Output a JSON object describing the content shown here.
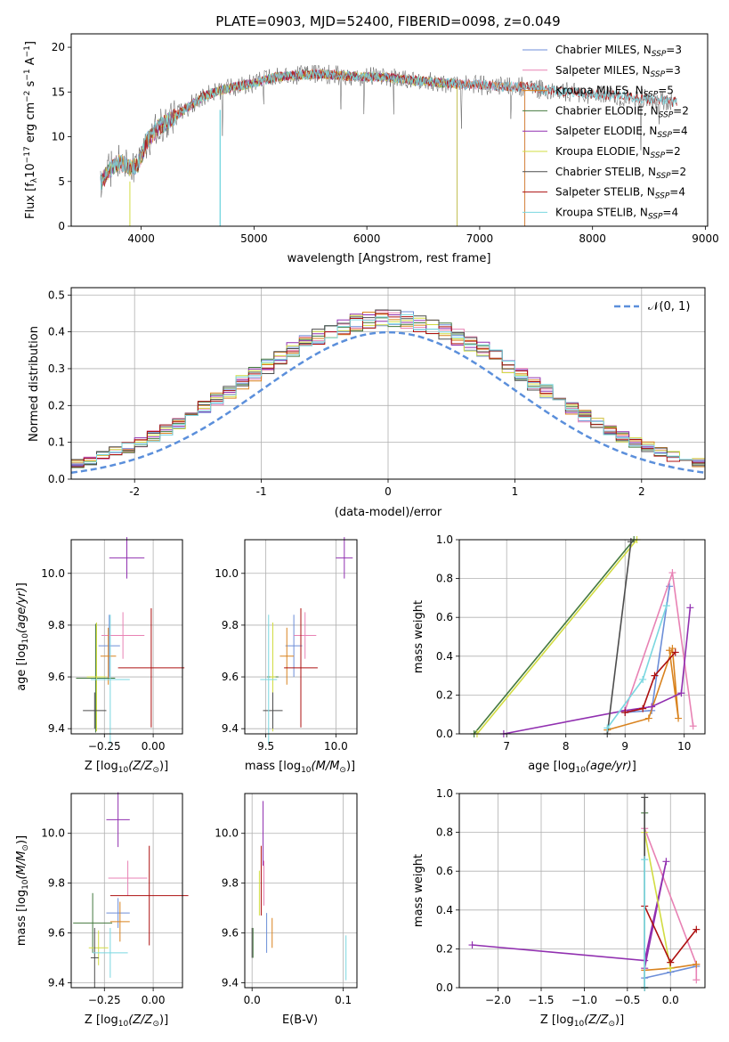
{
  "title": "PLATE=0903, MJD=52400, FIBERID=0098, z=0.049",
  "colors": [
    "#6c8ed8",
    "#e882b4",
    "#d9831f",
    "#44793f",
    "#9130b0",
    "#d2dc42",
    "#4d4d4d",
    "#ad1010",
    "#7ad7e0"
  ],
  "chart_data": [
    {
      "type": "line",
      "name": "spectrum",
      "xlabel": "wavelength [Angstrom, rest frame]",
      "ylabel": "Flux [f",
      "xlim": [
        3380,
        9020
      ],
      "ylim": [
        0,
        21.5
      ],
      "xticks": [
        4000,
        5000,
        6000,
        7000,
        8000,
        9000
      ],
      "yticks": [
        0,
        5,
        10,
        15,
        20
      ],
      "legend_position": "upper right",
      "series": [
        {
          "name": "Chabrier MILES",
          "nssp": "3",
          "x_end": 7400
        },
        {
          "name": "Salpeter MILES",
          "nssp": "3",
          "x_end": 7400
        },
        {
          "name": "Kroupa MILES",
          "nssp": "5",
          "x_end": 7400
        },
        {
          "name": "Chabrier ELODIE",
          "nssp": "2",
          "x_end": 6800
        },
        {
          "name": "Salpeter ELODIE",
          "nssp": "4",
          "x_end": 6800
        },
        {
          "name": "Kroupa ELODIE",
          "nssp": "2",
          "x_end": 6800
        },
        {
          "name": "Chabrier STELIB",
          "nssp": "2",
          "x_end": 8750
        },
        {
          "name": "Salpeter STELIB",
          "nssp": "4",
          "x_end": 8750
        },
        {
          "name": "Kroupa STELIB",
          "nssp": "4",
          "x_end": 8750
        }
      ],
      "continuum": {
        "x": [
          3640,
          3700,
          3800,
          3900,
          3970,
          4050,
          4150,
          4250,
          4400,
          4550,
          4700,
          4850,
          5000,
          5200,
          5400,
          5600,
          5800,
          6000,
          6200,
          6400,
          6600,
          6800,
          7000,
          7200,
          7400,
          7600,
          7800,
          8000,
          8200,
          8400,
          8600,
          8760
        ],
        "y": [
          4.8,
          6.0,
          7.2,
          6.5,
          6.8,
          9.5,
          11.0,
          11.8,
          13.2,
          14.5,
          15.2,
          15.6,
          16.0,
          16.7,
          16.9,
          17.0,
          16.8,
          16.7,
          16.6,
          16.3,
          16.1,
          15.9,
          15.8,
          15.6,
          15.6,
          15.2,
          15.0,
          14.7,
          14.6,
          14.3,
          14.1,
          13.8
        ]
      }
    },
    {
      "type": "line",
      "name": "residual-histogram",
      "xlabel": "(data-model)/error",
      "ylabel": "Normed distribution",
      "xlim": [
        -2.5,
        2.5
      ],
      "ylim": [
        0,
        0.52
      ],
      "xticks": [
        -2,
        -1,
        0,
        1,
        2
      ],
      "yticks": [
        0.0,
        0.1,
        0.2,
        0.3,
        0.4,
        0.5
      ],
      "legend": "𝒩(0, 1)",
      "bin_width": 0.1,
      "bin_start": -2.5
    },
    {
      "type": "scatter",
      "name": "age-vs-Z",
      "xlabel": "Z [log",
      "ylabel": "age  [log",
      "xlim": [
        -0.42,
        0.15
      ],
      "ylim": [
        9.38,
        10.13
      ],
      "xticks": [
        -0.25,
        0.0
      ],
      "xticklabels": [
        "−0.25",
        "0.00"
      ],
      "yticks": [
        9.4,
        9.6,
        9.8,
        10.0
      ],
      "points": [
        {
          "x": -0.225,
          "y": 9.72,
          "xerr": 0.055,
          "yerr": 0.12
        },
        {
          "x": -0.155,
          "y": 9.76,
          "xerr": 0.11,
          "yerr": 0.09
        },
        {
          "x": -0.23,
          "y": 9.68,
          "xerr": 0.04,
          "yerr": 0.11
        },
        {
          "x": -0.295,
          "y": 9.595,
          "xerr": 0.1,
          "yerr": 0.21
        },
        {
          "x": -0.135,
          "y": 10.06,
          "xerr": 0.09,
          "yerr": 0.08
        },
        {
          "x": -0.29,
          "y": 9.6,
          "xerr": 0.05,
          "yerr": 0.21
        },
        {
          "x": -0.3,
          "y": 9.47,
          "xerr": 0.06,
          "yerr": 0.07
        },
        {
          "x": -0.01,
          "y": 9.635,
          "xerr": 0.17,
          "yerr": 0.23
        },
        {
          "x": -0.22,
          "y": 9.59,
          "xerr": 0.1,
          "yerr": 0.25
        }
      ]
    },
    {
      "type": "scatter",
      "name": "age-vs-mass",
      "xlabel": "mass [log",
      "ylabel": "",
      "xlim": [
        9.35,
        10.15
      ],
      "ylim": [
        9.38,
        10.13
      ],
      "xticks": [
        9.5,
        10.0
      ],
      "xticklabels": [
        "9.5",
        "10.0"
      ],
      "yticks": [
        9.4,
        9.6,
        9.8,
        10.0
      ],
      "points": [
        {
          "x": 9.7,
          "y": 9.72,
          "xerr": 0.06,
          "yerr": 0.12
        },
        {
          "x": 9.78,
          "y": 9.76,
          "xerr": 0.08,
          "yerr": 0.09
        },
        {
          "x": 9.65,
          "y": 9.68,
          "xerr": 0.05,
          "yerr": 0.11
        },
        {
          "x": 9.55,
          "y": 9.6,
          "xerr": 0.04,
          "yerr": 0.21
        },
        {
          "x": 10.06,
          "y": 10.06,
          "xerr": 0.06,
          "yerr": 0.08
        },
        {
          "x": 9.55,
          "y": 9.6,
          "xerr": 0.02,
          "yerr": 0.21
        },
        {
          "x": 9.55,
          "y": 9.47,
          "xerr": 0.07,
          "yerr": 0.07
        },
        {
          "x": 9.75,
          "y": 9.635,
          "xerr": 0.12,
          "yerr": 0.23
        },
        {
          "x": 9.52,
          "y": 9.59,
          "xerr": 0.06,
          "yerr": 0.25
        }
      ]
    },
    {
      "type": "line",
      "name": "mass-weight-vs-age",
      "xlabel": "age  [log",
      "ylabel": "mass weight",
      "xlim": [
        6.2,
        10.35
      ],
      "ylim": [
        0,
        1
      ],
      "xticks": [
        7,
        8,
        9,
        10
      ],
      "yticks": [
        0.0,
        0.2,
        0.4,
        0.6,
        0.8,
        1.0
      ],
      "series": [
        {
          "x": [
            9.0,
            9.45,
            9.75
          ],
          "y": [
            0.11,
            0.12,
            0.76
          ]
        },
        {
          "x": [
            9.0,
            9.8,
            10.15
          ],
          "y": [
            0.12,
            0.83,
            0.04
          ]
        },
        {
          "x": [
            8.7,
            9.4,
            9.8,
            9.9,
            9.75
          ],
          "y": [
            0.02,
            0.08,
            0.44,
            0.08,
            0.43
          ]
        },
        {
          "x": [
            6.45,
            9.15
          ],
          "y": [
            0.0,
            1.0
          ]
        },
        {
          "x": [
            6.95,
            9.0,
            9.45,
            9.95,
            10.1
          ],
          "y": [
            0.0,
            0.12,
            0.14,
            0.21,
            0.65
          ]
        },
        {
          "x": [
            6.5,
            9.2
          ],
          "y": [
            0.0,
            1.0
          ]
        },
        {
          "x": [
            8.7,
            9.1
          ],
          "y": [
            0.0,
            0.99
          ]
        },
        {
          "x": [
            9.0,
            9.3,
            9.5,
            9.85
          ],
          "y": [
            0.11,
            0.13,
            0.3,
            0.42
          ]
        },
        {
          "x": [
            8.7,
            9.3,
            9.7
          ],
          "y": [
            0.03,
            0.28,
            0.66
          ]
        }
      ]
    },
    {
      "type": "scatter",
      "name": "mass-vs-Z",
      "xlabel": "Z [log",
      "ylabel": "mass [log",
      "xlim": [
        -0.42,
        0.15
      ],
      "ylim": [
        9.38,
        10.16
      ],
      "xticks": [
        -0.25,
        0.0
      ],
      "xticklabels": [
        "−0.25",
        "0.00"
      ],
      "yticks": [
        9.4,
        9.6,
        9.8,
        10.0
      ],
      "points": [
        {
          "x": -0.18,
          "y": 9.68,
          "xerr": 0.06,
          "yerr": 0.06
        },
        {
          "x": -0.13,
          "y": 9.82,
          "xerr": 0.1,
          "yerr": 0.07
        },
        {
          "x": -0.17,
          "y": 9.645,
          "xerr": 0.05,
          "yerr": 0.08
        },
        {
          "x": -0.31,
          "y": 9.64,
          "xerr": 0.1,
          "yerr": 0.12
        },
        {
          "x": -0.18,
          "y": 10.055,
          "xerr": 0.06,
          "yerr": 0.11
        },
        {
          "x": -0.28,
          "y": 9.54,
          "xerr": 0.05,
          "yerr": 0.07
        },
        {
          "x": -0.3,
          "y": 9.5,
          "xerr": 0.02,
          "yerr": 0.12
        },
        {
          "x": -0.02,
          "y": 9.75,
          "xerr": 0.2,
          "yerr": 0.2
        },
        {
          "x": -0.22,
          "y": 9.52,
          "xerr": 0.09,
          "yerr": 0.1
        }
      ]
    },
    {
      "type": "scatter",
      "name": "mass-vs-EBV",
      "xlabel": "E(B-V)",
      "ylabel": "",
      "xlim": [
        -0.008,
        0.115
      ],
      "ylim": [
        9.38,
        10.16
      ],
      "xticks": [
        0.0,
        0.1
      ],
      "xticklabels": [
        "0.0",
        "0.1"
      ],
      "yticks": [
        9.4,
        9.6,
        9.8,
        10.0
      ],
      "points": [
        {
          "x": 0.016,
          "y": 9.6,
          "xerr": 0,
          "yerr": 0.08
        },
        {
          "x": 0.013,
          "y": 9.8,
          "xerr": 0,
          "yerr": 0.09
        },
        {
          "x": 0.022,
          "y": 9.6,
          "xerr": 0,
          "yerr": 0.06
        },
        {
          "x": 0.001,
          "y": 9.56,
          "xerr": 0,
          "yerr": 0.06
        },
        {
          "x": 0.012,
          "y": 10.0,
          "xerr": 0,
          "yerr": 0.13
        },
        {
          "x": 0.008,
          "y": 9.76,
          "xerr": 0,
          "yerr": 0.09
        },
        {
          "x": 0.0,
          "y": 9.56,
          "xerr": 0,
          "yerr": 0.06
        },
        {
          "x": 0.01,
          "y": 9.81,
          "xerr": 0,
          "yerr": 0.14
        },
        {
          "x": 0.103,
          "y": 9.5,
          "xerr": 0,
          "yerr": 0.09
        }
      ]
    },
    {
      "type": "line",
      "name": "mass-weight-vs-Z",
      "xlabel": "Z [log",
      "ylabel": "mass weight",
      "xlim": [
        -2.45,
        0.4
      ],
      "ylim": [
        0,
        1
      ],
      "xticks": [
        -2.0,
        -1.5,
        -1.0,
        -0.5,
        0.0
      ],
      "xticklabels": [
        "−2.0",
        "−1.5",
        "−1.0",
        "−0.5",
        "0.0"
      ],
      "yticks": [
        0.0,
        0.2,
        0.4,
        0.6,
        0.8,
        1.0
      ],
      "series": [
        {
          "x": [
            -0.3,
            0.0,
            0.3
          ],
          "y": [
            0.05,
            0.08,
            0.11
          ]
        },
        {
          "x": [
            -0.3,
            0.3,
            0.3
          ],
          "y": [
            0.82,
            0.12,
            0.04
          ]
        },
        {
          "x": [
            -0.3,
            0.0,
            0.3
          ],
          "y": [
            0.09,
            0.1,
            0.12
          ]
        },
        {
          "x": [
            -0.3,
            -0.3
          ],
          "y": [
            0.0,
            0.9
          ]
        },
        {
          "x": [
            -2.3,
            -0.3,
            -0.05,
            -0.3
          ],
          "y": [
            0.22,
            0.14,
            0.65,
            0.1
          ]
        },
        {
          "x": [
            -0.3,
            0.0
          ],
          "y": [
            0.8,
            0.1
          ]
        },
        {
          "x": [
            -0.3,
            -0.3
          ],
          "y": [
            0.0,
            0.98
          ]
        },
        {
          "x": [
            -0.3,
            0.0,
            0.3
          ],
          "y": [
            0.42,
            0.13,
            0.3
          ]
        },
        {
          "x": [
            -0.3,
            -0.3
          ],
          "y": [
            0.0,
            0.66
          ]
        }
      ]
    }
  ]
}
